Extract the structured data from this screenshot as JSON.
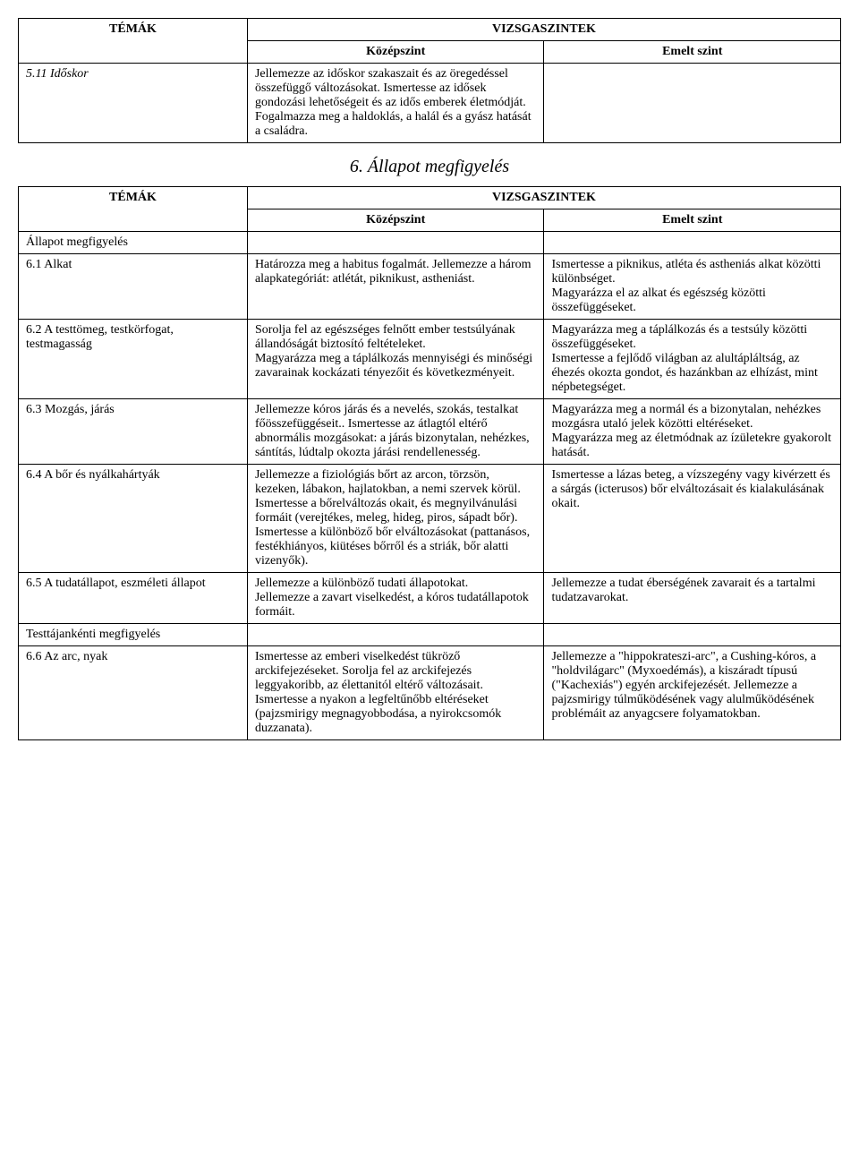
{
  "headers": {
    "temak": "TÉMÁK",
    "vizsgaszintek": "VIZSGASZINTEK",
    "kozepszint": "Középszint",
    "emeltszint": "Emelt szint"
  },
  "table1": {
    "row1": {
      "topic": "5.11 Időskor",
      "mid": "Jellemezze az időskor szakaszait és az öregedéssel összefüggő változásokat. Ismertesse az idősek gondozási lehetőségeit és az idős emberek életmódját.\nFogalmazza meg a haldoklás, a halál és a gyász hatását a családra.",
      "right": ""
    }
  },
  "section_title": "6. Állapot megfigyelés",
  "table2": {
    "row_allapot": {
      "topic": "Állapot megfigyelés",
      "mid": "",
      "right": ""
    },
    "row_61": {
      "topic": "6.1 Alkat",
      "mid": "Határozza meg a habitus fogalmát. Jellemezze a három alapkategóriát: atlétát, piknikust, astheniást.",
      "right": "Ismertesse a piknikus, atléta és astheniás alkat közötti különbséget.\nMagyarázza el az alkat és egészség közötti összefüggéseket."
    },
    "row_62": {
      "topic": "6.2 A testtömeg, testkörfogat, testmagasság",
      "mid": "Sorolja fel az egészséges felnőtt ember testsúlyának állandóságát biztosító feltételeket.\nMagyarázza meg a táplálkozás mennyiségi és minőségi zavarainak kockázati tényezőit és következményeit.",
      "right": "Magyarázza meg a táplálkozás és a testsúly közötti összefüggéseket.\nIsmertesse a fejlődő világban az alultápláltság, az éhezés okozta gondot, és hazánkban az elhízást, mint népbetegséget."
    },
    "row_63": {
      "topic": "6.3 Mozgás, járás",
      "mid": "Jellemezze kóros járás és a nevelés, szokás, testalkat főösszefüggéseit.. Ismertesse az átlagtól eltérő abnormális mozgásokat: a járás bizonytalan, nehézkes, sántítás, lúdtalp okozta járási rendellenesség.",
      "right": "Magyarázza meg a normál és a bizonytalan, nehézkes mozgásra utaló jelek közötti eltéréseket.\nMagyarázza meg az életmódnak az ízületekre gyakorolt hatását."
    },
    "row_64": {
      "topic": "6.4 A bőr és nyálkahártyák",
      "mid": "Jellemezze a fiziológiás bőrt az arcon, törzsön, kezeken, lábakon, hajlatokban, a nemi szervek körül.\nIsmertesse a bőrelváltozás okait, és megnyilvánulási formáit (verejtékes, meleg, hideg, piros, sápadt bőr).\nIsmertesse a különböző bőr elváltozásokat (pattanásos, festékhiányos, kiütéses bőrről és a striák, bőr alatti vizenyők).",
      "right": "Ismertesse a lázas beteg, a vízszegény vagy kivérzett és a sárgás (icterusos) bőr elváltozásait és kialakulásának okait."
    },
    "row_65": {
      "topic": "6.5 A tudatállapot, eszméleti állapot",
      "mid": "Jellemezze a különböző tudati állapotokat.\nJellemezze a zavart viselkedést, a kóros tudatállapotok formáit.",
      "right": "Jellemezze a tudat éberségének zavarait és a tartalmi tudatzavarokat."
    },
    "row_testtaj": {
      "topic": "Testtájankénti megfigyelés",
      "mid": "",
      "right": ""
    },
    "row_66": {
      "topic": "6.6 Az arc, nyak",
      "mid": "Ismertesse az emberi viselkedést tükröző arckifejezéseket. Sorolja fel az arckifejezés leggyakoribb, az élettanitól eltérő változásait.\nIsmertesse a nyakon a legfeltűnőbb eltéréseket (pajzsmirigy megnagyobbodása, a nyirokcsomók duzzanata).",
      "right": "Jellemezze a \"hippokrateszi-arc\", a Cushing-kóros, a \"holdvilágarc\" (Myxoedémás), a kiszáradt típusú (\"Kachexiás\") egyén arckifejezését. Jellemezze a pajzsmirigy túlműködésének vagy alulműködésének problémáit az anyagcsere folyamatokban."
    }
  }
}
